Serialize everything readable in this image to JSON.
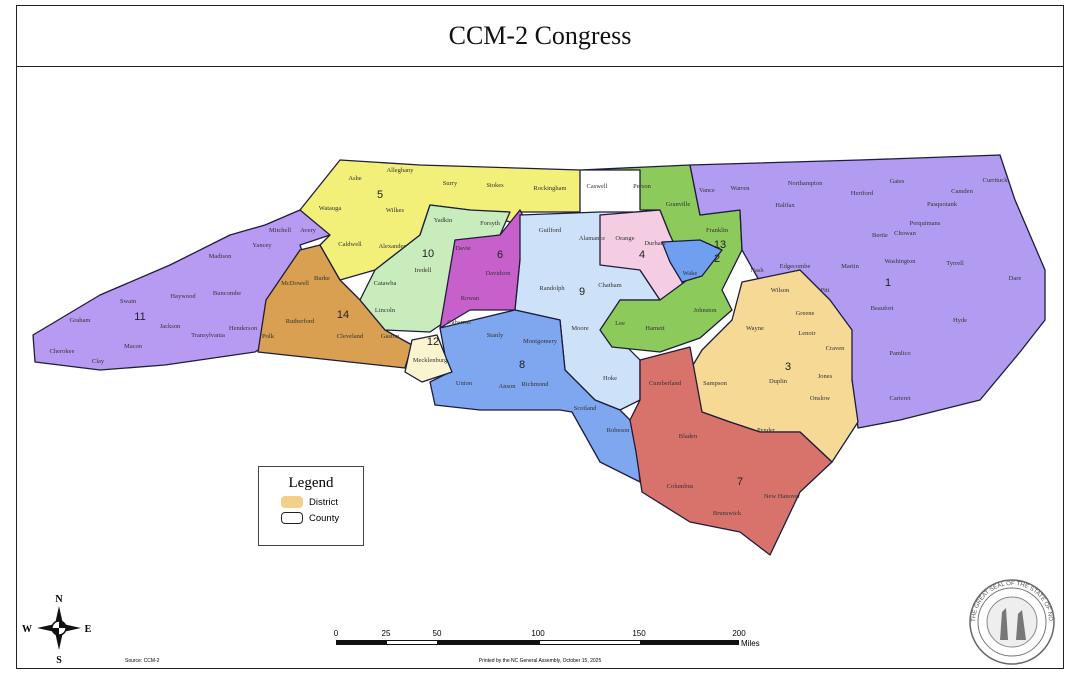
{
  "title": "CCM-2 Congress",
  "legend": {
    "title": "Legend",
    "items": [
      {
        "label": "District",
        "color": "#f2d08c"
      },
      {
        "label": "County",
        "color": "#ffffff"
      }
    ]
  },
  "compass": {
    "n": "N",
    "s": "S",
    "e": "E",
    "w": "W"
  },
  "scale_bar": {
    "ticks": [
      "0",
      "25",
      "50",
      "100",
      "150",
      "200"
    ],
    "unit": "Miles"
  },
  "source": "Source: CCM-2",
  "printed": "Printed by the NC General Assembly, October 15, 2025",
  "seal_text": "THE GREAT SEAL OF THE STATE OF NORTH CAROLINA",
  "district_colors": {
    "1": "#b29cf2",
    "2": "#6f9ff0",
    "3": "#f6d995",
    "4": "#f5cde3",
    "5": "#f2f079",
    "6": "#c860cc",
    "7": "#d8736c",
    "8": "#7ea7ef",
    "9": "#cde2f8",
    "10": "#c8ecbc",
    "11": "#b79bf2",
    "12": "#fbf4d0",
    "13": "#8cca5c",
    "14": "#d8a050"
  },
  "districts": [
    "1",
    "2",
    "3",
    "4",
    "5",
    "6",
    "7",
    "8",
    "9",
    "10",
    "11",
    "12",
    "13",
    "14"
  ],
  "counties": [
    "Ashe",
    "Alleghany",
    "Surry",
    "Stokes",
    "Rockingham",
    "Caswell",
    "Person",
    "Granville",
    "Vance",
    "Warren",
    "Northampton",
    "Hertford",
    "Gates",
    "Currituck",
    "Camden",
    "Pasquotank",
    "Perquimans",
    "Chowan",
    "Bertie",
    "Halifax",
    "Watauga",
    "Wilkes",
    "Mitchell",
    "Avery",
    "Yancey",
    "Caldwell",
    "Alexander",
    "Yadkin",
    "Forsyth",
    "Guilford",
    "Alamance",
    "Orange",
    "Durham",
    "Franklin",
    "Nash",
    "Edgecombe",
    "Martin",
    "Washington",
    "Tyrrell",
    "Dare",
    "Madison",
    "Buncombe",
    "McDowell",
    "Burke",
    "Catawba",
    "Iredell",
    "Davie",
    "Davidson",
    "Rowan",
    "Randolph",
    "Chatham",
    "Wake",
    "Johnston",
    "Wilson",
    "Pitt",
    "Beaufort",
    "Hyde",
    "Greene",
    "Wayne",
    "Lenoir",
    "Craven",
    "Pamlico",
    "Jones",
    "Carteret",
    "Onslow",
    "Duplin",
    "Sampson",
    "Harnett",
    "Lee",
    "Moore",
    "Hoke",
    "Cumberland",
    "Scotland",
    "Robeson",
    "Bladen",
    "Pender",
    "Columbus",
    "New Hanover",
    "Brunswick",
    "Richmond",
    "Anson",
    "Union",
    "Stanly",
    "Montgomery",
    "Cabarrus",
    "Mecklenburg",
    "Gaston",
    "Lincoln",
    "Cleveland",
    "Rutherford",
    "Polk",
    "Henderson",
    "Transylvania",
    "Haywood",
    "Jackson",
    "Swain",
    "Graham",
    "Cherokee",
    "Clay",
    "Macon"
  ]
}
